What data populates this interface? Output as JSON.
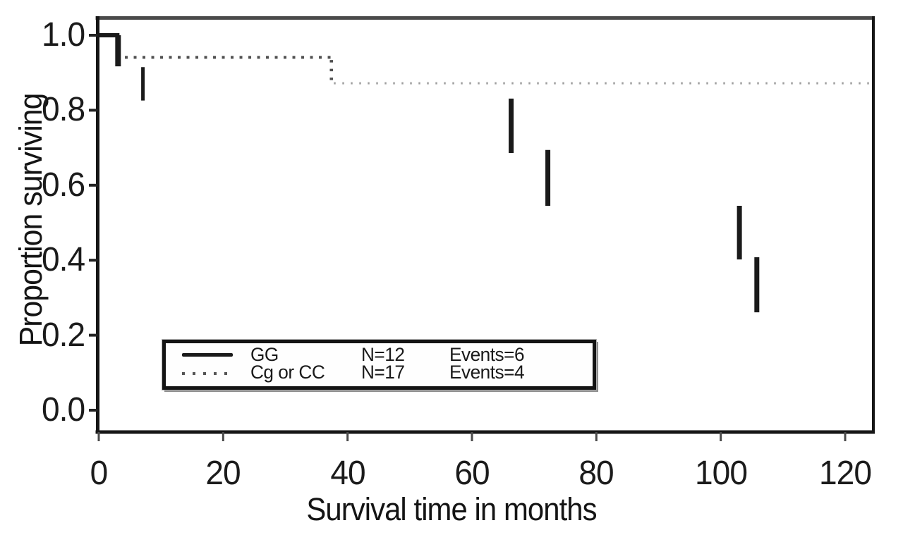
{
  "chart_data": {
    "type": "line",
    "subtype": "kaplan-meier-survival-steps",
    "title": "",
    "xlabel": "Survival time in months",
    "ylabel": "Proportion surviving",
    "xlim": [
      0,
      124.5
    ],
    "ylim": [
      0.0,
      1.0
    ],
    "x_ticks": [
      0,
      20,
      40,
      60,
      80,
      100,
      120
    ],
    "y_ticks": [
      1.0,
      0.8,
      0.6,
      0.4,
      0.2,
      0.0
    ],
    "y_tick_labels": [
      "1.0",
      "0.8",
      "0.6",
      "0.4",
      "0.2",
      "0.0"
    ],
    "grid": false,
    "legend_position": "bottom-left-inside",
    "series": [
      {
        "name": "GG",
        "n": 12,
        "events": 6,
        "line_style": "solid",
        "color": "#1a1a1a",
        "survival_steps": [
          {
            "t": 0,
            "p": 1.0
          },
          {
            "t": 3,
            "p": 0.917
          },
          {
            "t": 7,
            "p": 0.833
          },
          {
            "t": 66,
            "p": 0.69
          },
          {
            "t": 72,
            "p": 0.545
          },
          {
            "t": 103,
            "p": 0.4
          },
          {
            "t": 106,
            "p": 0.26
          }
        ],
        "visible": {
          "top_run": {
            "t_start": 0,
            "t_end": 3.1,
            "p": 1.0,
            "w": 6
          },
          "drops": [
            {
              "t": 3.1,
              "p_from": 1.0,
              "p_to": 0.917,
              "w": 8
            },
            {
              "t": 7.1,
              "p_from": 0.915,
              "p_to": 0.826,
              "w": 5
            },
            {
              "t": 66.3,
              "p_from": 0.831,
              "p_to": 0.686,
              "w": 7
            },
            {
              "t": 72.2,
              "p_from": 0.694,
              "p_to": 0.545,
              "w": 7
            },
            {
              "t": 103.0,
              "p_from": 0.545,
              "p_to": 0.402,
              "w": 7
            },
            {
              "t": 105.8,
              "p_from": 0.408,
              "p_to": 0.261,
              "w": 7
            }
          ]
        }
      },
      {
        "name": "Cg or CC",
        "n": 17,
        "events": 4,
        "line_style": "dotted",
        "color_dark": "#4f4f4f",
        "color_light": "#9e9e9e",
        "survival_steps": [
          {
            "t": 3,
            "p": 0.941
          },
          {
            "t": 37,
            "p": 0.872
          }
        ],
        "visible": {
          "runs": [
            {
              "t_start": 4.2,
              "t_end": 37.4,
              "p": 0.941,
              "shade": "dark"
            },
            {
              "t_start": 37.8,
              "t_end": 124.5,
              "p": 0.872,
              "shade": "light"
            }
          ],
          "drop": {
            "t": 37.4,
            "p_from": 0.934,
            "p_to": 0.878,
            "shade": "dark"
          }
        }
      }
    ],
    "legend": {
      "rows": [
        {
          "label": "GG",
          "n": "N=12",
          "events": "Events=6"
        },
        {
          "label": "Cg or CC",
          "n": "N=17",
          "events": "Events=4"
        }
      ]
    }
  }
}
